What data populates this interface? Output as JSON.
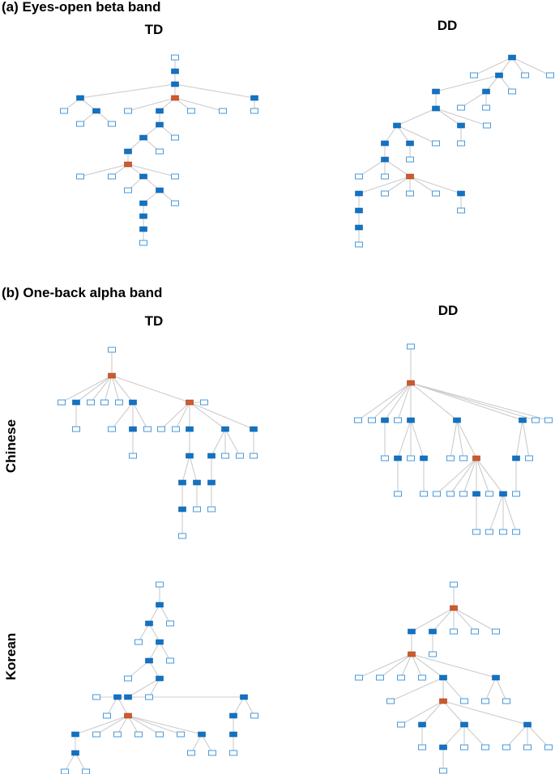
{
  "sections": {
    "a_title": "(a) Eyes-open beta band",
    "b_title": "(b) One-back alpha band"
  },
  "columns": {
    "td": "TD",
    "dd": "DD"
  },
  "rows": {
    "chinese": "Chinese",
    "korean": "Korean"
  },
  "legend_colors": {
    "hub": "#d05a2c",
    "internal": "#1273c5",
    "leaf_fill": "#ffffff",
    "leaf_stroke": "#4a9ad8",
    "edge": "#cccccc"
  },
  "node_types": [
    "hub-node",
    "internal-node",
    "leaf-node"
  ]
}
